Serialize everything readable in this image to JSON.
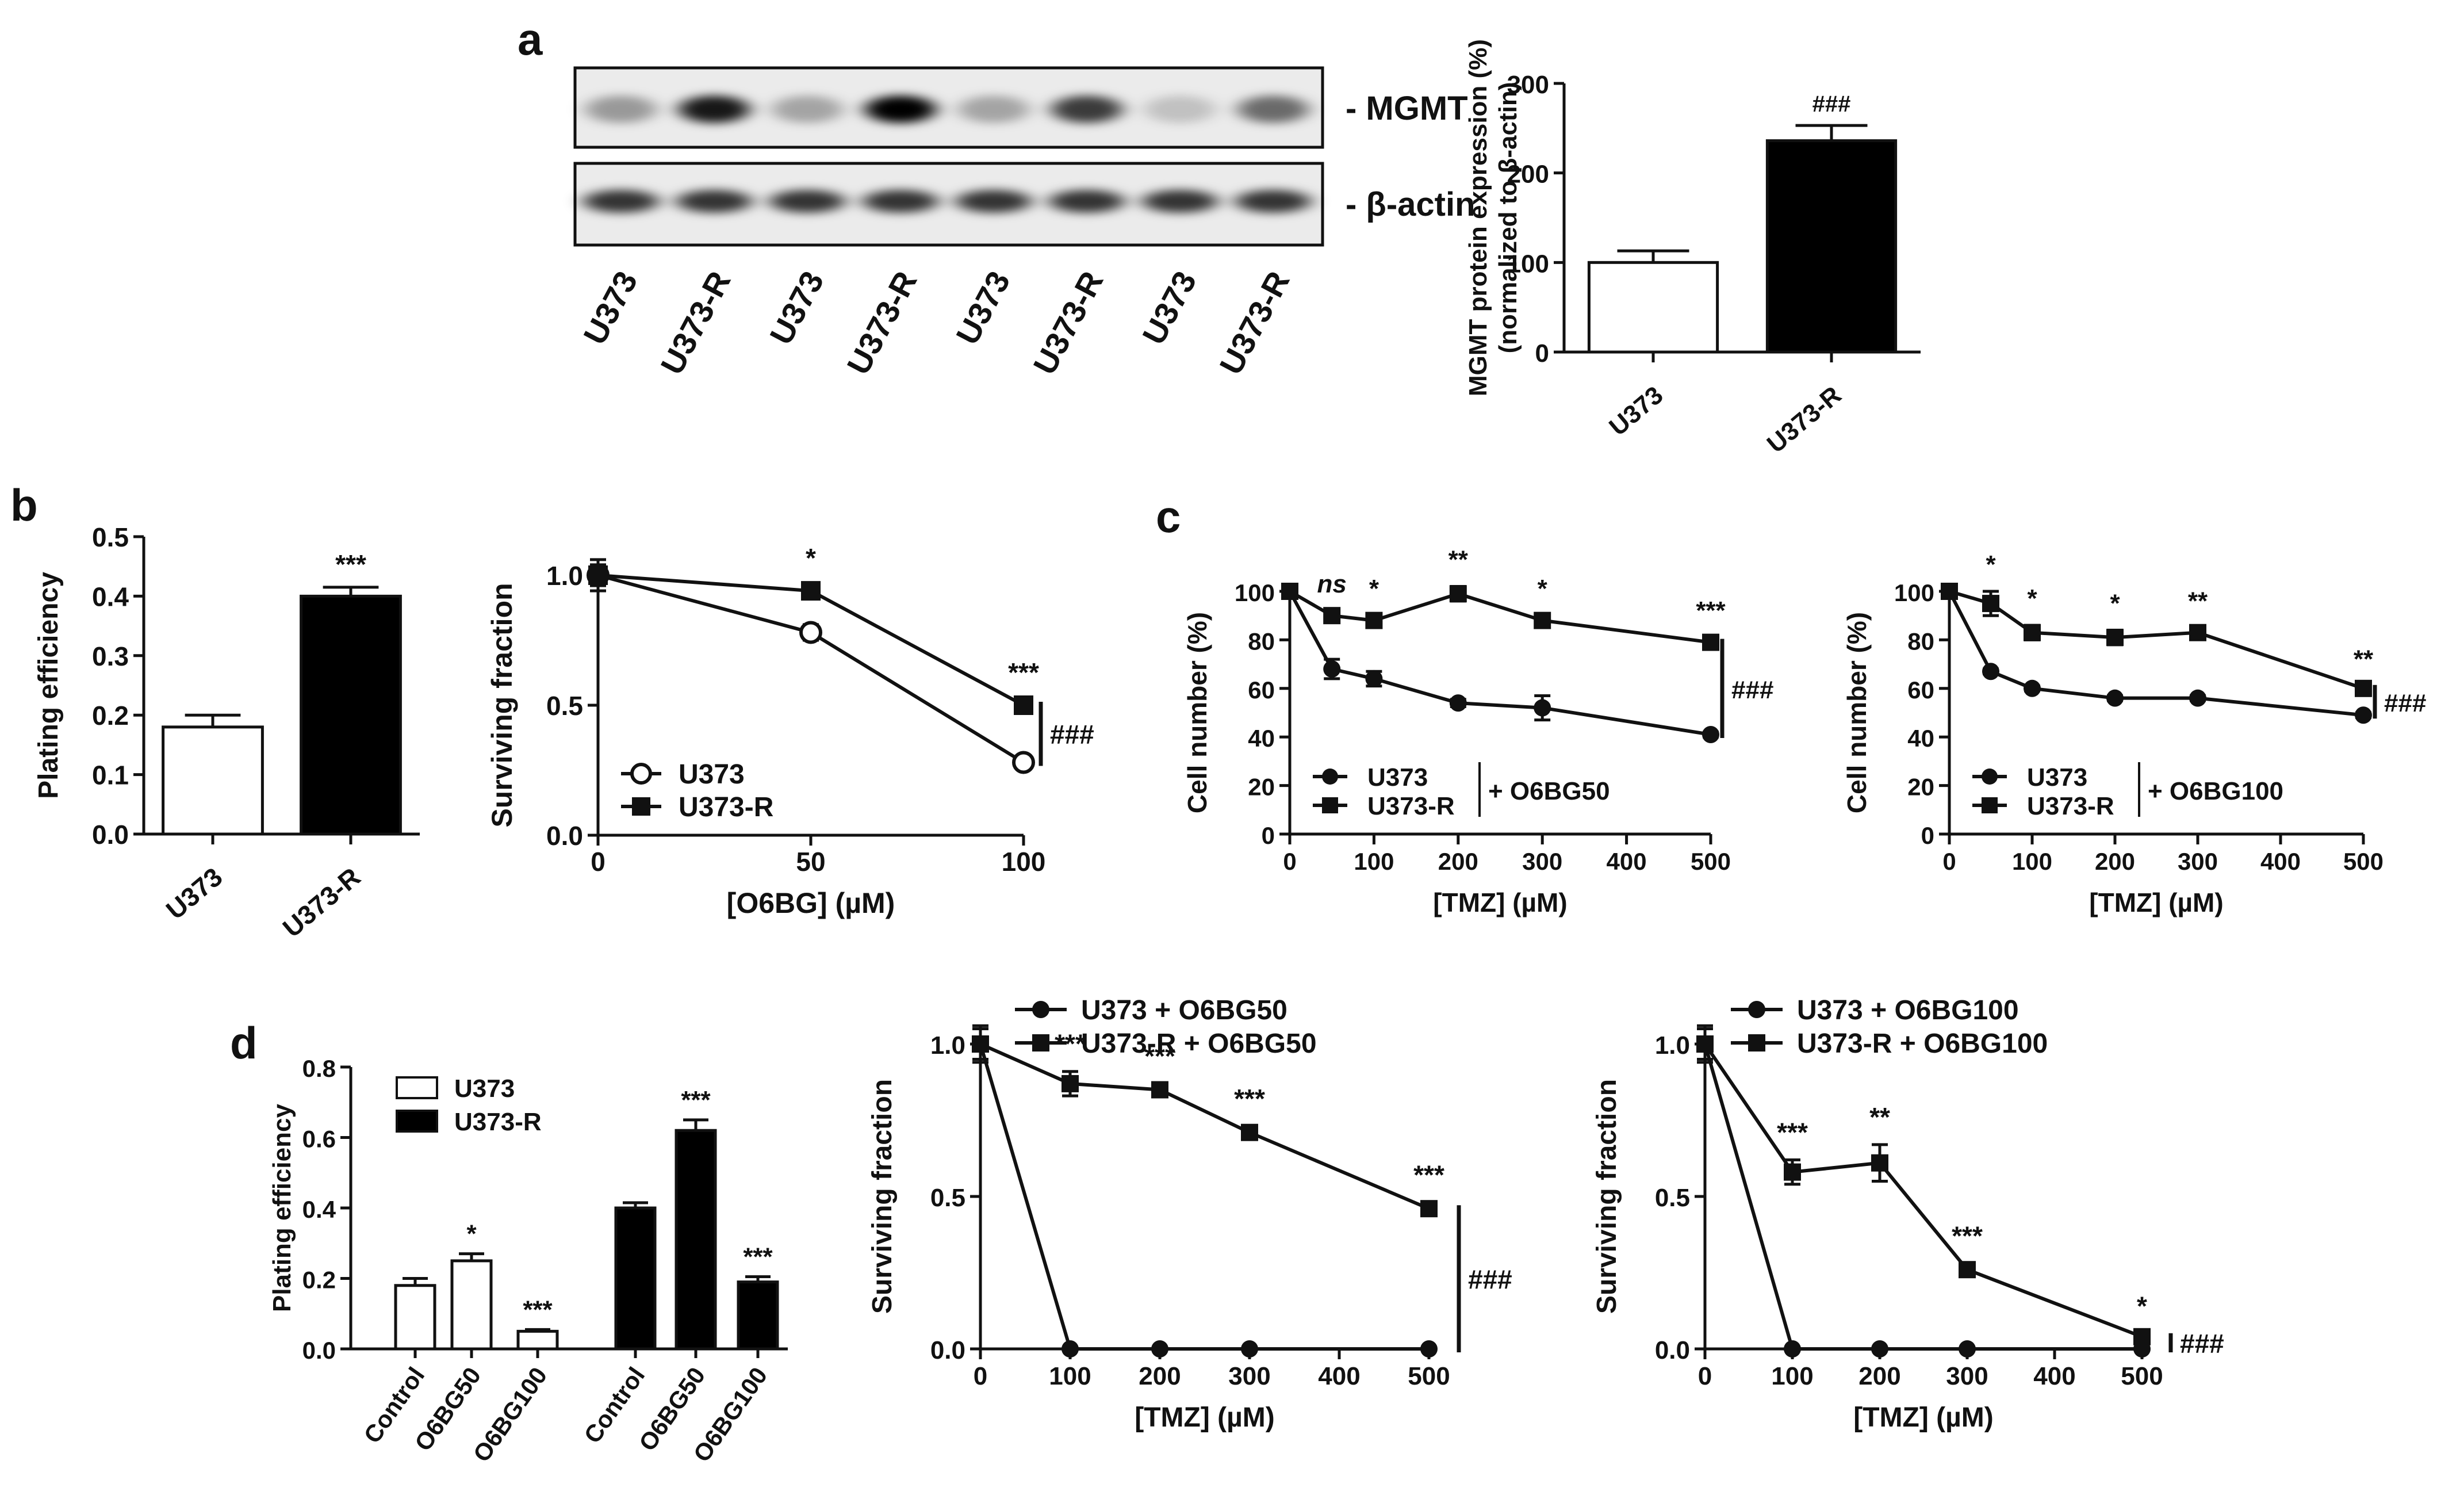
{
  "panel_labels": [
    "a",
    "b",
    "c",
    "d"
  ],
  "blot": {
    "band_labels": [
      "- MGMT",
      "- β-actin"
    ],
    "lanes": [
      "U373",
      "U373-R",
      "U373",
      "U373-R",
      "U373",
      "U373-R",
      "U373",
      "U373-R"
    ]
  },
  "chart_data": [
    {
      "id": "a-bar",
      "type": "bar",
      "categories": [
        "U373",
        "U373-R"
      ],
      "values": [
        100,
        236
      ],
      "errors": [
        13,
        17
      ],
      "fills": [
        "#ffffff",
        "#000000"
      ],
      "ylabel": "MGMT protein expression (%)",
      "ylabel2": "(normalized to β-actin)",
      "ylim": [
        0,
        300
      ],
      "yticks": [
        "0",
        "100",
        "200",
        "300"
      ],
      "annotations": [
        "",
        "###"
      ]
    },
    {
      "id": "b-bar",
      "type": "bar",
      "categories": [
        "U373",
        "U373-R"
      ],
      "values": [
        0.18,
        0.4
      ],
      "errors": [
        0.02,
        0.015
      ],
      "fills": [
        "#ffffff",
        "#000000"
      ],
      "ylabel": "Plating efficiency",
      "ylim": [
        0,
        0.5
      ],
      "yticks": [
        "0.0",
        "0.1",
        "0.2",
        "0.3",
        "0.4",
        "0.5"
      ],
      "annotations": [
        "",
        "***"
      ]
    },
    {
      "id": "b-line",
      "type": "line",
      "x": [
        0,
        50,
        100
      ],
      "xlim": [
        0,
        100
      ],
      "xticks": [
        "0",
        "50",
        "100"
      ],
      "xlabel": "[O6BG] (µM)",
      "ylabel": "Surviving fraction",
      "ylim": [
        0,
        1.0
      ],
      "yticks": [
        "0.0",
        "0.5",
        "1.0"
      ],
      "series": [
        {
          "name": "U373",
          "marker": "open-circle",
          "values": [
            1.0,
            0.78,
            0.28
          ],
          "errors": [
            0.06,
            0.03,
            0.01
          ]
        },
        {
          "name": "U373-R",
          "marker": "square",
          "values": [
            1.0,
            0.94,
            0.5
          ],
          "errors": [
            0.04,
            0.02,
            0.02
          ]
        }
      ],
      "point_annotations": [
        [
          "50",
          "*"
        ],
        [
          "100",
          "***"
        ]
      ],
      "bracket_label": "###",
      "legend": "bottom-left"
    },
    {
      "id": "c-line-1",
      "type": "line",
      "x": [
        0,
        50,
        100,
        200,
        300,
        500
      ],
      "xlim": [
        0,
        500
      ],
      "xticks": [
        "0",
        "100",
        "200",
        "300",
        "400",
        "500"
      ],
      "xlabel": "[TMZ] (µM)",
      "ylabel": "Cell number (%)",
      "ylim": [
        0,
        100
      ],
      "yticks": [
        "0",
        "20",
        "40",
        "60",
        "80",
        "100"
      ],
      "series": [
        {
          "name": "U373",
          "marker": "circle",
          "values": [
            100,
            68,
            64,
            54,
            52,
            41
          ],
          "errors": [
            0,
            4,
            3,
            1.5,
            5,
            1
          ]
        },
        {
          "name": "U373-R",
          "marker": "square",
          "values": [
            100,
            90,
            88,
            99,
            88,
            79
          ],
          "errors": [
            0,
            2,
            2,
            3,
            2,
            2
          ]
        }
      ],
      "point_annotations": [
        [
          "50",
          "ns"
        ],
        [
          "100",
          "*"
        ],
        [
          "200",
          "**"
        ],
        [
          "300",
          "*"
        ],
        [
          "500",
          "***"
        ]
      ],
      "legend_suffix": "+ O6BG50",
      "bracket_label": "###",
      "legend": "bottom-left"
    },
    {
      "id": "c-line-2",
      "type": "line",
      "x": [
        0,
        50,
        100,
        200,
        300,
        500
      ],
      "xlim": [
        0,
        500
      ],
      "xticks": [
        "0",
        "100",
        "200",
        "300",
        "400",
        "500"
      ],
      "xlabel": "[TMZ] (µM)",
      "ylabel": "Cell number (%)",
      "ylim": [
        0,
        100
      ],
      "yticks": [
        "0",
        "20",
        "40",
        "60",
        "80",
        "100"
      ],
      "series": [
        {
          "name": "U373",
          "marker": "circle",
          "values": [
            100,
            67,
            60,
            56,
            56,
            49
          ],
          "errors": [
            0,
            1,
            1,
            1,
            1,
            1
          ]
        },
        {
          "name": "U373-R",
          "marker": "square",
          "values": [
            100,
            95,
            83,
            81,
            83,
            60
          ],
          "errors": [
            0,
            5,
            3,
            3,
            2,
            1
          ]
        }
      ],
      "point_annotations": [
        [
          "50",
          "*"
        ],
        [
          "100",
          "*"
        ],
        [
          "200",
          "*"
        ],
        [
          "300",
          "**"
        ],
        [
          "500",
          "**"
        ]
      ],
      "legend_suffix": "+ O6BG100",
      "bracket_label": "###",
      "legend": "bottom-left"
    },
    {
      "id": "d-bar",
      "type": "bar",
      "categories": [
        "Control",
        "O6BG50",
        "O6BG100"
      ],
      "series": [
        {
          "name": "U373",
          "fill": "#ffffff",
          "values": [
            0.18,
            0.25,
            0.05
          ],
          "errors": [
            0.02,
            0.02,
            0.005
          ],
          "annotations": [
            "",
            "*",
            "***"
          ]
        },
        {
          "name": "U373-R",
          "fill": "#000000",
          "values": [
            0.4,
            0.62,
            0.19
          ],
          "errors": [
            0.015,
            0.03,
            0.015
          ],
          "annotations": [
            "",
            "***",
            "***"
          ]
        }
      ],
      "ylabel": "Plating efficiency",
      "ylim": [
        0,
        0.8
      ],
      "yticks": [
        "0.0",
        "0.2",
        "0.4",
        "0.6",
        "0.8"
      ],
      "legend": "top-left"
    },
    {
      "id": "d-line-1",
      "type": "line",
      "x": [
        0,
        100,
        200,
        300,
        500
      ],
      "xlim": [
        0,
        500
      ],
      "xticks": [
        "0",
        "100",
        "200",
        "300",
        "400",
        "500"
      ],
      "xlabel": "[TMZ] (µM)",
      "ylabel": "Surviving fraction",
      "ylim": [
        0,
        1.0
      ],
      "yticks": [
        "0.0",
        "0.5",
        "1.0"
      ],
      "series": [
        {
          "name": "U373 + O6BG50",
          "marker": "circle",
          "values": [
            1.0,
            0,
            0,
            0,
            0
          ],
          "errors": [
            0.05,
            0,
            0,
            0,
            0
          ]
        },
        {
          "name": "U373-R + O6BG50",
          "marker": "square",
          "values": [
            1.0,
            0.87,
            0.85,
            0.71,
            0.46
          ],
          "errors": [
            0.06,
            0.04,
            0.02,
            0.02,
            0.02
          ]
        }
      ],
      "point_annotations": [
        [
          "100",
          "***"
        ],
        [
          "200",
          "***"
        ],
        [
          "300",
          "***"
        ],
        [
          "500",
          "***"
        ]
      ],
      "bracket_label": "###",
      "legend": "top"
    },
    {
      "id": "d-line-2",
      "type": "line",
      "x": [
        0,
        100,
        200,
        300,
        500
      ],
      "xlim": [
        0,
        500
      ],
      "xticks": [
        "0",
        "100",
        "200",
        "300",
        "400",
        "500"
      ],
      "xlabel": "[TMZ] (µM)",
      "ylabel": "Surviving fraction",
      "ylim": [
        0,
        1.0
      ],
      "yticks": [
        "0.0",
        "0.5",
        "1.0"
      ],
      "series": [
        {
          "name": "U373 + O6BG100",
          "marker": "circle",
          "values": [
            1.0,
            0,
            0,
            0,
            0
          ],
          "errors": [
            0.05,
            0,
            0,
            0,
            0
          ]
        },
        {
          "name": "U373-R + O6BG100",
          "marker": "square",
          "values": [
            1.0,
            0.58,
            0.61,
            0.26,
            0.04
          ],
          "errors": [
            0.06,
            0.04,
            0.06,
            0.02,
            0.01
          ]
        }
      ],
      "point_annotations": [
        [
          "100",
          "***"
        ],
        [
          "200",
          "**"
        ],
        [
          "300",
          "***"
        ],
        [
          "500",
          "*"
        ]
      ],
      "bracket_label": "###",
      "legend": "top"
    }
  ]
}
